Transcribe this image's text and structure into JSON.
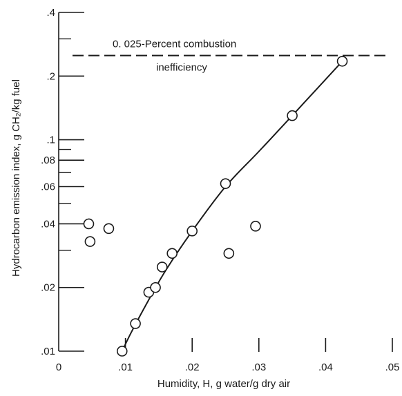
{
  "chart_data": {
    "type": "scatter",
    "title": "",
    "xlabel": "Humidity, H, g water/g dry air",
    "ylabel": "Hydrocarbon emission index, g CH₂/kg fuel",
    "xlim": [
      0,
      0.05
    ],
    "ylim": [
      0.01,
      0.4
    ],
    "yscale": "log",
    "grid": false,
    "x_ticks": [
      {
        "value": 0,
        "label": "0"
      },
      {
        "value": 0.01,
        "label": ".01"
      },
      {
        "value": 0.02,
        "label": ".02"
      },
      {
        "value": 0.03,
        "label": ".03"
      },
      {
        "value": 0.04,
        "label": ".04"
      },
      {
        "value": 0.05,
        "label": ".05"
      }
    ],
    "y_ticks": [
      {
        "value": 0.01,
        "label": ".01"
      },
      {
        "value": 0.02,
        "label": ".02"
      },
      {
        "value": 0.04,
        "label": ".04"
      },
      {
        "value": 0.06,
        "label": ".06"
      },
      {
        "value": 0.08,
        "label": ".08"
      },
      {
        "value": 0.1,
        "label": ".1"
      },
      {
        "value": 0.2,
        "label": ".2"
      },
      {
        "value": 0.4,
        "label": ".4"
      }
    ],
    "y_minor_ticks": [
      0.03,
      0.05,
      0.07,
      0.09,
      0.3
    ],
    "points": [
      {
        "x": 0.0045,
        "y": 0.04
      },
      {
        "x": 0.0047,
        "y": 0.033
      },
      {
        "x": 0.0075,
        "y": 0.038
      },
      {
        "x": 0.0095,
        "y": 0.01
      },
      {
        "x": 0.0115,
        "y": 0.0135
      },
      {
        "x": 0.0135,
        "y": 0.019
      },
      {
        "x": 0.0145,
        "y": 0.02
      },
      {
        "x": 0.0155,
        "y": 0.025
      },
      {
        "x": 0.017,
        "y": 0.029
      },
      {
        "x": 0.02,
        "y": 0.037
      },
      {
        "x": 0.025,
        "y": 0.062
      },
      {
        "x": 0.0255,
        "y": 0.029
      },
      {
        "x": 0.0295,
        "y": 0.039
      },
      {
        "x": 0.035,
        "y": 0.13
      },
      {
        "x": 0.0425,
        "y": 0.235
      }
    ],
    "fit_curve": [
      {
        "x": 0.0095,
        "y": 0.01
      },
      {
        "x": 0.011,
        "y": 0.0125
      },
      {
        "x": 0.0135,
        "y": 0.0175
      },
      {
        "x": 0.016,
        "y": 0.024
      },
      {
        "x": 0.02,
        "y": 0.037
      },
      {
        "x": 0.025,
        "y": 0.06
      },
      {
        "x": 0.03,
        "y": 0.088
      },
      {
        "x": 0.035,
        "y": 0.13
      },
      {
        "x": 0.0425,
        "y": 0.235
      }
    ],
    "reference_line": {
      "y": 0.25,
      "style": "dashed",
      "label_line1": "0. 025-Percent combustion",
      "label_line2": "inefficiency"
    }
  }
}
